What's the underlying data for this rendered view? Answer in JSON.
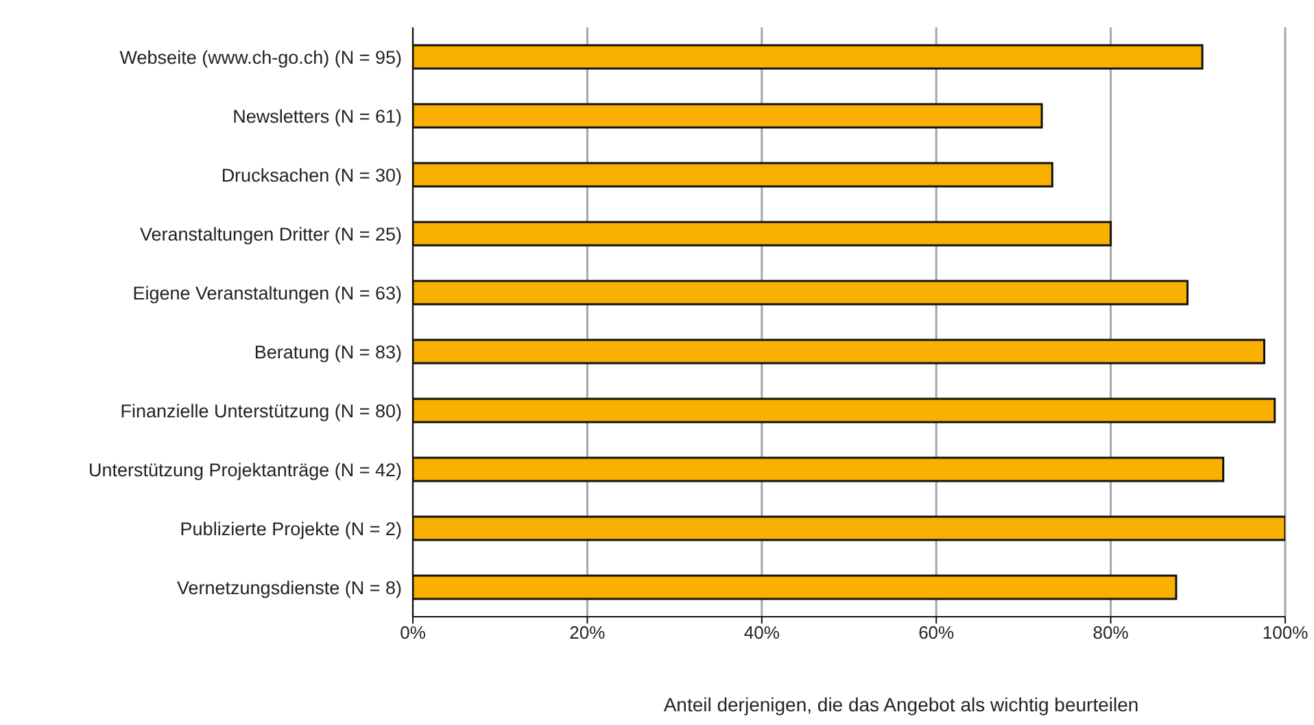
{
  "chart_data": {
    "type": "bar",
    "orientation": "horizontal",
    "xlabel": "Anteil derjenigen, die das Angebot als wichtig beurteilen",
    "categories": [
      "Webseite (www.ch-go.ch) (N = 95)",
      "Newsletters (N = 61)",
      "Drucksachen (N = 30)",
      "Veranstaltungen Dritter (N = 25)",
      "Eigene Veranstaltungen (N = 63)",
      "Beratung (N = 83)",
      "Finanzielle Unterstützung (N = 80)",
      "Unterstützung Projektanträge (N = 42)",
      "Publizierte Projekte (N = 2)",
      "Vernetzungsdienste (N = 8)"
    ],
    "values": [
      90.5,
      72.1,
      73.3,
      80,
      88.8,
      97.6,
      98.8,
      92.9,
      100,
      87.5
    ],
    "color": "#f9b000",
    "xlim": [
      0,
      100
    ],
    "xticks": [
      {
        "value": 0,
        "label": "0%"
      },
      {
        "value": 20,
        "label": "20%"
      },
      {
        "value": 40,
        "label": "40%"
      },
      {
        "value": 60,
        "label": "60%"
      },
      {
        "value": 80,
        "label": "80%"
      },
      {
        "value": 100,
        "label": "100%"
      }
    ],
    "grid": "x",
    "legend": false
  }
}
